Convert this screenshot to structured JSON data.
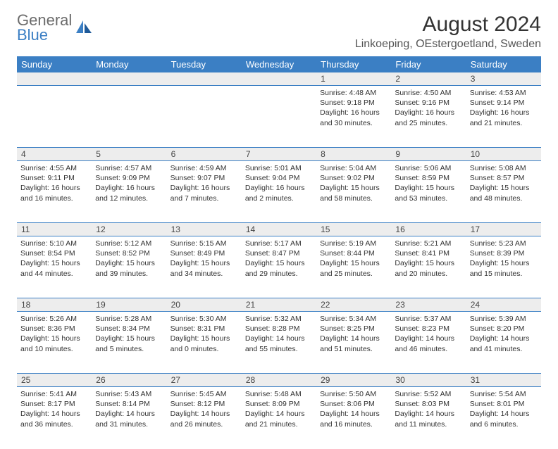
{
  "logo": {
    "general": "General",
    "blue": "Blue"
  },
  "title": "August 2024",
  "location": "Linkoeping, OEstergoetland, Sweden",
  "colors": {
    "header_bg": "#3b7fc4",
    "header_text": "#ffffff",
    "daynum_bg": "#ededed",
    "border": "#3b7fc4",
    "logo_gray": "#6b6b6b",
    "logo_blue": "#3b7fc4"
  },
  "weekdays": [
    "Sunday",
    "Monday",
    "Tuesday",
    "Wednesday",
    "Thursday",
    "Friday",
    "Saturday"
  ],
  "weeks": [
    {
      "nums": [
        "",
        "",
        "",
        "",
        "1",
        "2",
        "3"
      ],
      "cells": [
        null,
        null,
        null,
        null,
        {
          "sunrise": "Sunrise: 4:48 AM",
          "sunset": "Sunset: 9:18 PM",
          "day1": "Daylight: 16 hours",
          "day2": "and 30 minutes."
        },
        {
          "sunrise": "Sunrise: 4:50 AM",
          "sunset": "Sunset: 9:16 PM",
          "day1": "Daylight: 16 hours",
          "day2": "and 25 minutes."
        },
        {
          "sunrise": "Sunrise: 4:53 AM",
          "sunset": "Sunset: 9:14 PM",
          "day1": "Daylight: 16 hours",
          "day2": "and 21 minutes."
        }
      ]
    },
    {
      "nums": [
        "4",
        "5",
        "6",
        "7",
        "8",
        "9",
        "10"
      ],
      "cells": [
        {
          "sunrise": "Sunrise: 4:55 AM",
          "sunset": "Sunset: 9:11 PM",
          "day1": "Daylight: 16 hours",
          "day2": "and 16 minutes."
        },
        {
          "sunrise": "Sunrise: 4:57 AM",
          "sunset": "Sunset: 9:09 PM",
          "day1": "Daylight: 16 hours",
          "day2": "and 12 minutes."
        },
        {
          "sunrise": "Sunrise: 4:59 AM",
          "sunset": "Sunset: 9:07 PM",
          "day1": "Daylight: 16 hours",
          "day2": "and 7 minutes."
        },
        {
          "sunrise": "Sunrise: 5:01 AM",
          "sunset": "Sunset: 9:04 PM",
          "day1": "Daylight: 16 hours",
          "day2": "and 2 minutes."
        },
        {
          "sunrise": "Sunrise: 5:04 AM",
          "sunset": "Sunset: 9:02 PM",
          "day1": "Daylight: 15 hours",
          "day2": "and 58 minutes."
        },
        {
          "sunrise": "Sunrise: 5:06 AM",
          "sunset": "Sunset: 8:59 PM",
          "day1": "Daylight: 15 hours",
          "day2": "and 53 minutes."
        },
        {
          "sunrise": "Sunrise: 5:08 AM",
          "sunset": "Sunset: 8:57 PM",
          "day1": "Daylight: 15 hours",
          "day2": "and 48 minutes."
        }
      ]
    },
    {
      "nums": [
        "11",
        "12",
        "13",
        "14",
        "15",
        "16",
        "17"
      ],
      "cells": [
        {
          "sunrise": "Sunrise: 5:10 AM",
          "sunset": "Sunset: 8:54 PM",
          "day1": "Daylight: 15 hours",
          "day2": "and 44 minutes."
        },
        {
          "sunrise": "Sunrise: 5:12 AM",
          "sunset": "Sunset: 8:52 PM",
          "day1": "Daylight: 15 hours",
          "day2": "and 39 minutes."
        },
        {
          "sunrise": "Sunrise: 5:15 AM",
          "sunset": "Sunset: 8:49 PM",
          "day1": "Daylight: 15 hours",
          "day2": "and 34 minutes."
        },
        {
          "sunrise": "Sunrise: 5:17 AM",
          "sunset": "Sunset: 8:47 PM",
          "day1": "Daylight: 15 hours",
          "day2": "and 29 minutes."
        },
        {
          "sunrise": "Sunrise: 5:19 AM",
          "sunset": "Sunset: 8:44 PM",
          "day1": "Daylight: 15 hours",
          "day2": "and 25 minutes."
        },
        {
          "sunrise": "Sunrise: 5:21 AM",
          "sunset": "Sunset: 8:41 PM",
          "day1": "Daylight: 15 hours",
          "day2": "and 20 minutes."
        },
        {
          "sunrise": "Sunrise: 5:23 AM",
          "sunset": "Sunset: 8:39 PM",
          "day1": "Daylight: 15 hours",
          "day2": "and 15 minutes."
        }
      ]
    },
    {
      "nums": [
        "18",
        "19",
        "20",
        "21",
        "22",
        "23",
        "24"
      ],
      "cells": [
        {
          "sunrise": "Sunrise: 5:26 AM",
          "sunset": "Sunset: 8:36 PM",
          "day1": "Daylight: 15 hours",
          "day2": "and 10 minutes."
        },
        {
          "sunrise": "Sunrise: 5:28 AM",
          "sunset": "Sunset: 8:34 PM",
          "day1": "Daylight: 15 hours",
          "day2": "and 5 minutes."
        },
        {
          "sunrise": "Sunrise: 5:30 AM",
          "sunset": "Sunset: 8:31 PM",
          "day1": "Daylight: 15 hours",
          "day2": "and 0 minutes."
        },
        {
          "sunrise": "Sunrise: 5:32 AM",
          "sunset": "Sunset: 8:28 PM",
          "day1": "Daylight: 14 hours",
          "day2": "and 55 minutes."
        },
        {
          "sunrise": "Sunrise: 5:34 AM",
          "sunset": "Sunset: 8:25 PM",
          "day1": "Daylight: 14 hours",
          "day2": "and 51 minutes."
        },
        {
          "sunrise": "Sunrise: 5:37 AM",
          "sunset": "Sunset: 8:23 PM",
          "day1": "Daylight: 14 hours",
          "day2": "and 46 minutes."
        },
        {
          "sunrise": "Sunrise: 5:39 AM",
          "sunset": "Sunset: 8:20 PM",
          "day1": "Daylight: 14 hours",
          "day2": "and 41 minutes."
        }
      ]
    },
    {
      "nums": [
        "25",
        "26",
        "27",
        "28",
        "29",
        "30",
        "31"
      ],
      "cells": [
        {
          "sunrise": "Sunrise: 5:41 AM",
          "sunset": "Sunset: 8:17 PM",
          "day1": "Daylight: 14 hours",
          "day2": "and 36 minutes."
        },
        {
          "sunrise": "Sunrise: 5:43 AM",
          "sunset": "Sunset: 8:14 PM",
          "day1": "Daylight: 14 hours",
          "day2": "and 31 minutes."
        },
        {
          "sunrise": "Sunrise: 5:45 AM",
          "sunset": "Sunset: 8:12 PM",
          "day1": "Daylight: 14 hours",
          "day2": "and 26 minutes."
        },
        {
          "sunrise": "Sunrise: 5:48 AM",
          "sunset": "Sunset: 8:09 PM",
          "day1": "Daylight: 14 hours",
          "day2": "and 21 minutes."
        },
        {
          "sunrise": "Sunrise: 5:50 AM",
          "sunset": "Sunset: 8:06 PM",
          "day1": "Daylight: 14 hours",
          "day2": "and 16 minutes."
        },
        {
          "sunrise": "Sunrise: 5:52 AM",
          "sunset": "Sunset: 8:03 PM",
          "day1": "Daylight: 14 hours",
          "day2": "and 11 minutes."
        },
        {
          "sunrise": "Sunrise: 5:54 AM",
          "sunset": "Sunset: 8:01 PM",
          "day1": "Daylight: 14 hours",
          "day2": "and 6 minutes."
        }
      ]
    }
  ]
}
